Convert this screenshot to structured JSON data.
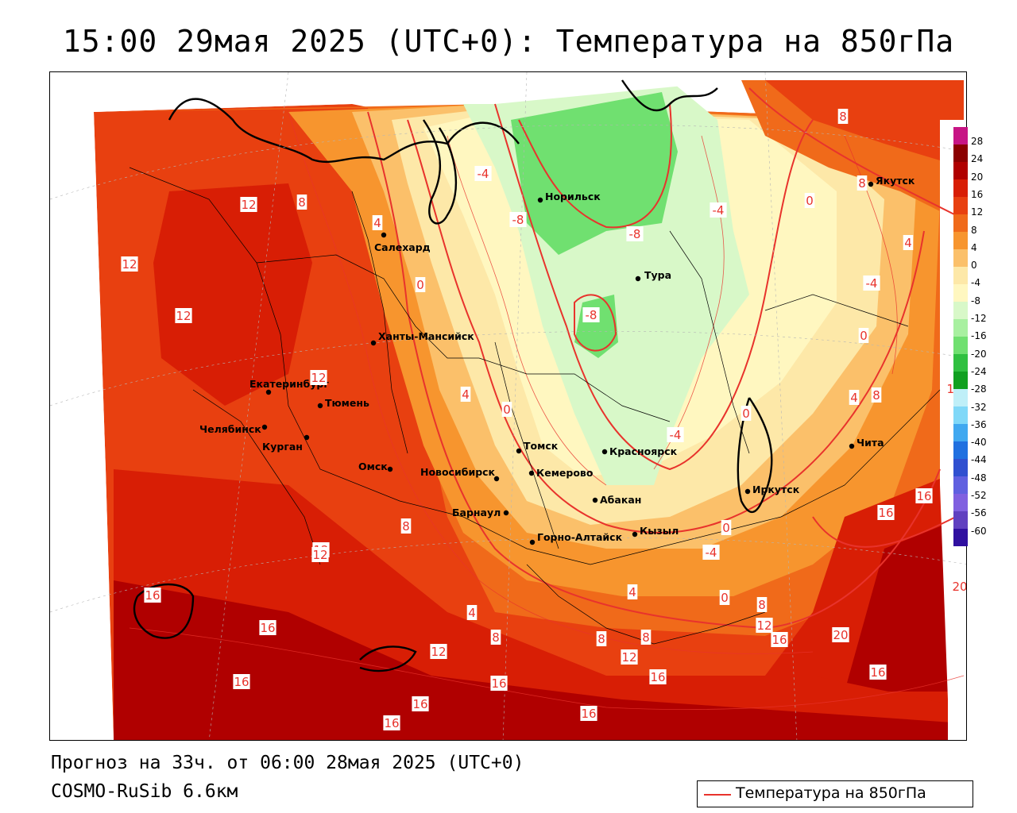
{
  "title": "15:00 29мая 2025 (UTC+0): Температура на 850гПа",
  "footer": {
    "forecast": "Прогноз на 33ч. от 06:00 28мая 2025 (UTC+0)",
    "model": "COSMO-RuSib 6.6км"
  },
  "legend": {
    "label": "Температура на 850гПа",
    "line_color": "#e8332c"
  },
  "colorbar": {
    "ticks": [
      "28",
      "24",
      "20",
      "16",
      "12",
      "8",
      "4",
      "0",
      "-4",
      "-8",
      "-12",
      "-16",
      "-20",
      "-24",
      "-28",
      "-32",
      "-36",
      "-40",
      "-44",
      "-48",
      "-52",
      "-56",
      "-60"
    ],
    "colors": [
      "#c71585",
      "#8b0000",
      "#b00000",
      "#d81e05",
      "#e84010",
      "#f06a1a",
      "#f7952e",
      "#fbc06a",
      "#fde8a8",
      "#fff7c0",
      "#d8f8c8",
      "#a8f0a0",
      "#70e070",
      "#30c040",
      "#10a020",
      "#bfeff8",
      "#80d8f8",
      "#40a8f0",
      "#2070e0",
      "#3050d0",
      "#6060e0",
      "#8060e0",
      "#6040c0",
      "#3010a0"
    ]
  },
  "cities": [
    {
      "name": "Якутск"
    },
    {
      "name": "Норильск"
    },
    {
      "name": "Салехард"
    },
    {
      "name": "Тура"
    },
    {
      "name": "Ханты-Мансийск"
    },
    {
      "name": "Екатеринбург"
    },
    {
      "name": "Тюмень"
    },
    {
      "name": "Челябинск"
    },
    {
      "name": "Курган"
    },
    {
      "name": "Омск"
    },
    {
      "name": "Новосибирск"
    },
    {
      "name": "Томск"
    },
    {
      "name": "Кемерово"
    },
    {
      "name": "Красноярск"
    },
    {
      "name": "Абакан"
    },
    {
      "name": "Барнаул"
    },
    {
      "name": "Горно-Алтайск"
    },
    {
      "name": "Кызыл"
    },
    {
      "name": "Иркутск"
    },
    {
      "name": "Чита"
    }
  ],
  "contour_labels": [
    "8",
    "8",
    "12",
    "8",
    "4",
    "-4",
    "-8",
    "-8",
    "-4",
    "0",
    "4",
    "12",
    "12",
    "0",
    "-4",
    "-8",
    "0",
    "12",
    "4",
    "0",
    "0",
    "-4",
    "4",
    "8",
    "12",
    "8",
    "16",
    "16",
    "20",
    "16",
    "12",
    "12",
    "-4",
    "0",
    "4",
    "0",
    "8",
    "4",
    "8",
    "12",
    "16",
    "8",
    "16",
    "8",
    "12",
    "16",
    "20",
    "16",
    "16",
    "16",
    "16",
    "12",
    "16",
    "16",
    "20"
  ]
}
